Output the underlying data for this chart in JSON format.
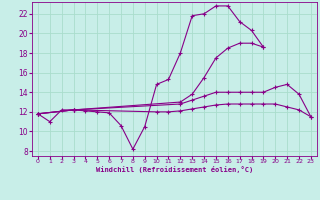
{
  "xlabel": "Windchill (Refroidissement éolien,°C)",
  "bg_color": "#c8eee8",
  "line_color": "#880088",
  "grid_color": "#aaddcc",
  "xlim": [
    -0.5,
    23.5
  ],
  "ylim": [
    7.5,
    23.2
  ],
  "xticks": [
    0,
    1,
    2,
    3,
    4,
    5,
    6,
    7,
    8,
    9,
    10,
    11,
    12,
    13,
    14,
    15,
    16,
    17,
    18,
    19,
    20,
    21,
    22,
    23
  ],
  "yticks": [
    8,
    10,
    12,
    14,
    16,
    18,
    20,
    22
  ],
  "lines": [
    {
      "x": [
        0,
        1,
        2,
        3,
        4,
        5,
        6,
        7,
        8,
        9,
        10,
        11,
        12,
        13,
        14,
        15,
        16,
        17,
        18,
        19
      ],
      "y": [
        11.8,
        11.0,
        12.2,
        12.2,
        12.1,
        12.0,
        11.9,
        10.6,
        8.2,
        10.5,
        14.8,
        15.3,
        18.0,
        21.8,
        22.0,
        22.8,
        22.8,
        21.2,
        20.3,
        18.6
      ]
    },
    {
      "x": [
        0,
        3,
        12,
        13,
        14,
        15,
        16,
        17,
        18,
        19
      ],
      "y": [
        11.8,
        12.2,
        13.0,
        13.8,
        15.5,
        17.5,
        18.5,
        19.0,
        19.0,
        18.6
      ]
    },
    {
      "x": [
        0,
        3,
        10,
        11,
        12,
        13,
        14,
        15,
        16,
        17,
        18,
        19,
        20,
        21,
        22,
        23
      ],
      "y": [
        11.8,
        12.2,
        12.0,
        12.0,
        12.1,
        12.3,
        12.5,
        12.7,
        12.8,
        12.8,
        12.8,
        12.8,
        12.8,
        12.5,
        12.2,
        11.5
      ]
    },
    {
      "x": [
        0,
        3,
        12,
        13,
        14,
        15,
        16,
        17,
        18,
        19,
        20,
        21,
        22,
        23
      ],
      "y": [
        11.8,
        12.2,
        12.8,
        13.2,
        13.6,
        14.0,
        14.0,
        14.0,
        14.0,
        14.0,
        14.5,
        14.8,
        13.8,
        11.5
      ]
    }
  ]
}
